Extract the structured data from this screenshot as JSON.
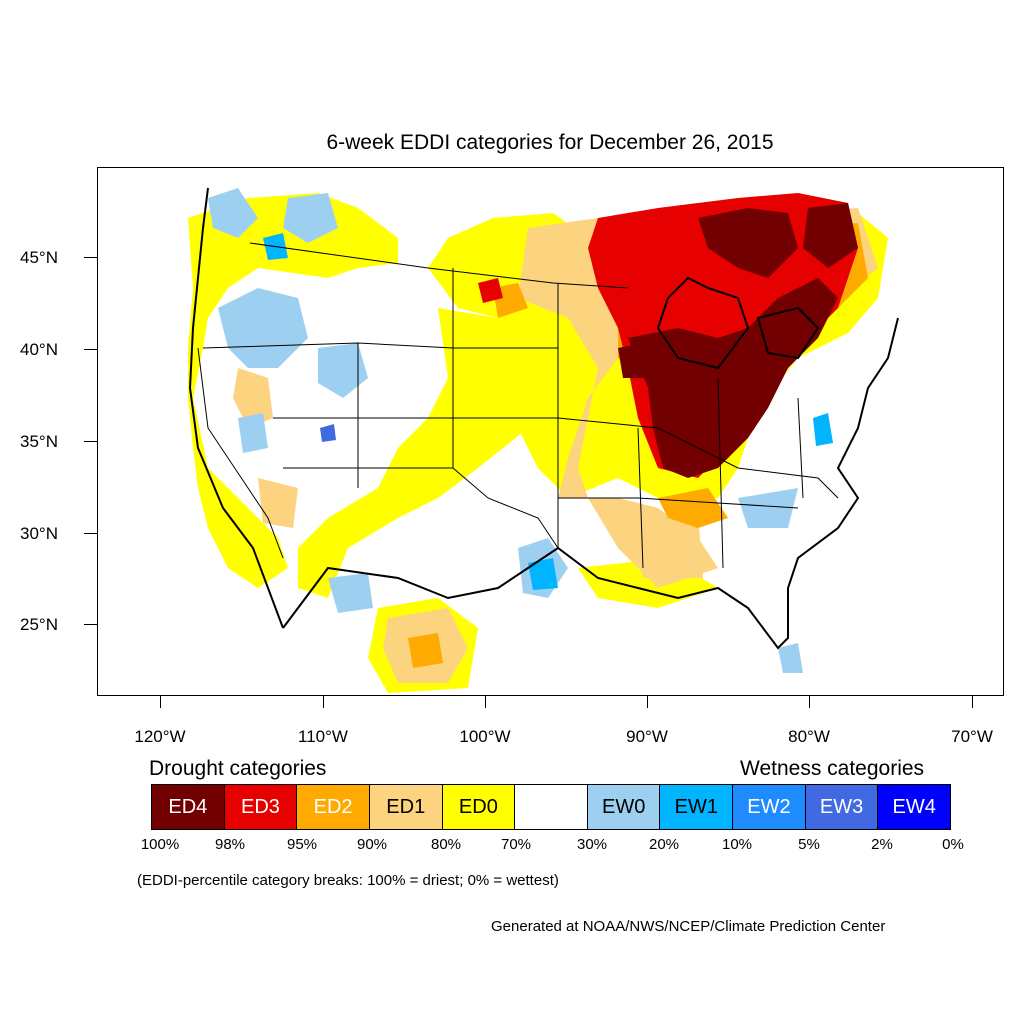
{
  "title": "6-week EDDI categories for December 26, 2015",
  "map": {
    "lat_labels": [
      "45°N",
      "40°N",
      "35°N",
      "30°N",
      "25°N"
    ],
    "lon_labels": [
      "120°W",
      "110°W",
      "100°W",
      "90°W",
      "80°W",
      "70°W"
    ]
  },
  "legend": {
    "drought_heading": "Drought categories",
    "wetness_heading": "Wetness categories",
    "categories": [
      {
        "label": "ED4",
        "color": "#730000",
        "text_color": "#ffffff"
      },
      {
        "label": "ED3",
        "color": "#e60000",
        "text_color": "#ffffff"
      },
      {
        "label": "ED2",
        "color": "#ffaa00",
        "text_color": "#ffffff"
      },
      {
        "label": "ED1",
        "color": "#fcd37f",
        "text_color": "#000000"
      },
      {
        "label": "ED0",
        "color": "#ffff00",
        "text_color": "#000000"
      },
      {
        "label": "",
        "color": "#ffffff",
        "text_color": "#000000"
      },
      {
        "label": "EW0",
        "color": "#9dd0f0",
        "text_color": "#000000"
      },
      {
        "label": "EW1",
        "color": "#00b4ff",
        "text_color": "#000000"
      },
      {
        "label": "EW2",
        "color": "#1e8cff",
        "text_color": "#ffffff"
      },
      {
        "label": "EW3",
        "color": "#4169e1",
        "text_color": "#ffffff"
      },
      {
        "label": "EW4",
        "color": "#0000ff",
        "text_color": "#ffffff"
      }
    ],
    "breaks": [
      "100%",
      "98%",
      "95%",
      "90%",
      "80%",
      "70%",
      "30%",
      "20%",
      "10%",
      "5%",
      "2%",
      "0%"
    ]
  },
  "footnote": "(EDDI-percentile category breaks: 100% = driest; 0% = wettest)",
  "credit": "Generated at NOAA/NWS/NCEP/Climate Prediction Center"
}
